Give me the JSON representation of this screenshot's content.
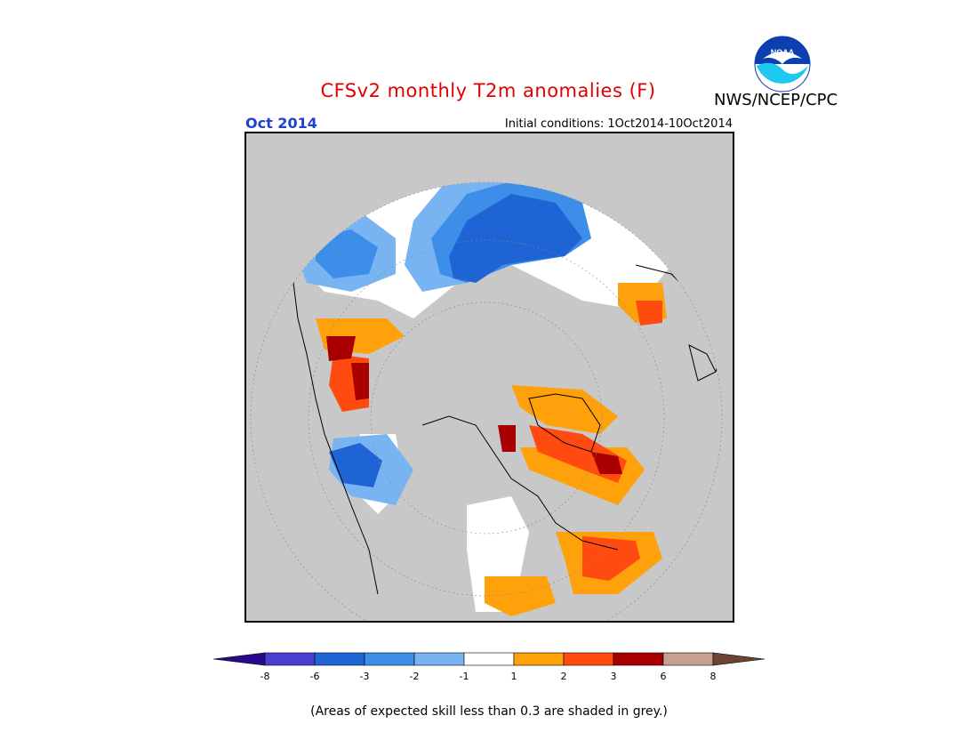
{
  "header": {
    "title": "CFSv2 monthly T2m anomalies (F)",
    "month": "Oct 2014",
    "initial_conditions": "Initial conditions: 1Oct2014-10Oct2014",
    "agency": "NWS/NCEP/CPC",
    "logo_text": "NOAA"
  },
  "legend": {
    "ticks": [
      "-8",
      "-6",
      "-3",
      "-2",
      "-1",
      "1",
      "2",
      "3",
      "6",
      "8"
    ],
    "colors": [
      "#2a0a8c",
      "#4b3fd0",
      "#1f64d4",
      "#3d8ee8",
      "#79b4f2",
      "#ffffff",
      "#ffa10a",
      "#ff4b10",
      "#a80000",
      "#c8a090",
      "#6b4432"
    ]
  },
  "note": "(Areas of expected skill less than 0.3 are shaded in grey.)",
  "colors": {
    "grey_mask": "#c8c8c8",
    "title_red": "#e10000",
    "month_blue": "#2040d0"
  }
}
